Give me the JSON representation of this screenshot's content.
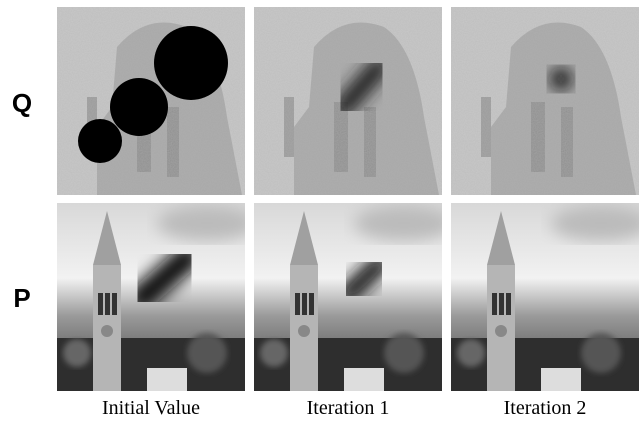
{
  "rows": [
    {
      "label": "Q"
    },
    {
      "label": "P"
    }
  ],
  "columns": [
    "Initial Value",
    "Iteration 1",
    "Iteration 2"
  ]
}
